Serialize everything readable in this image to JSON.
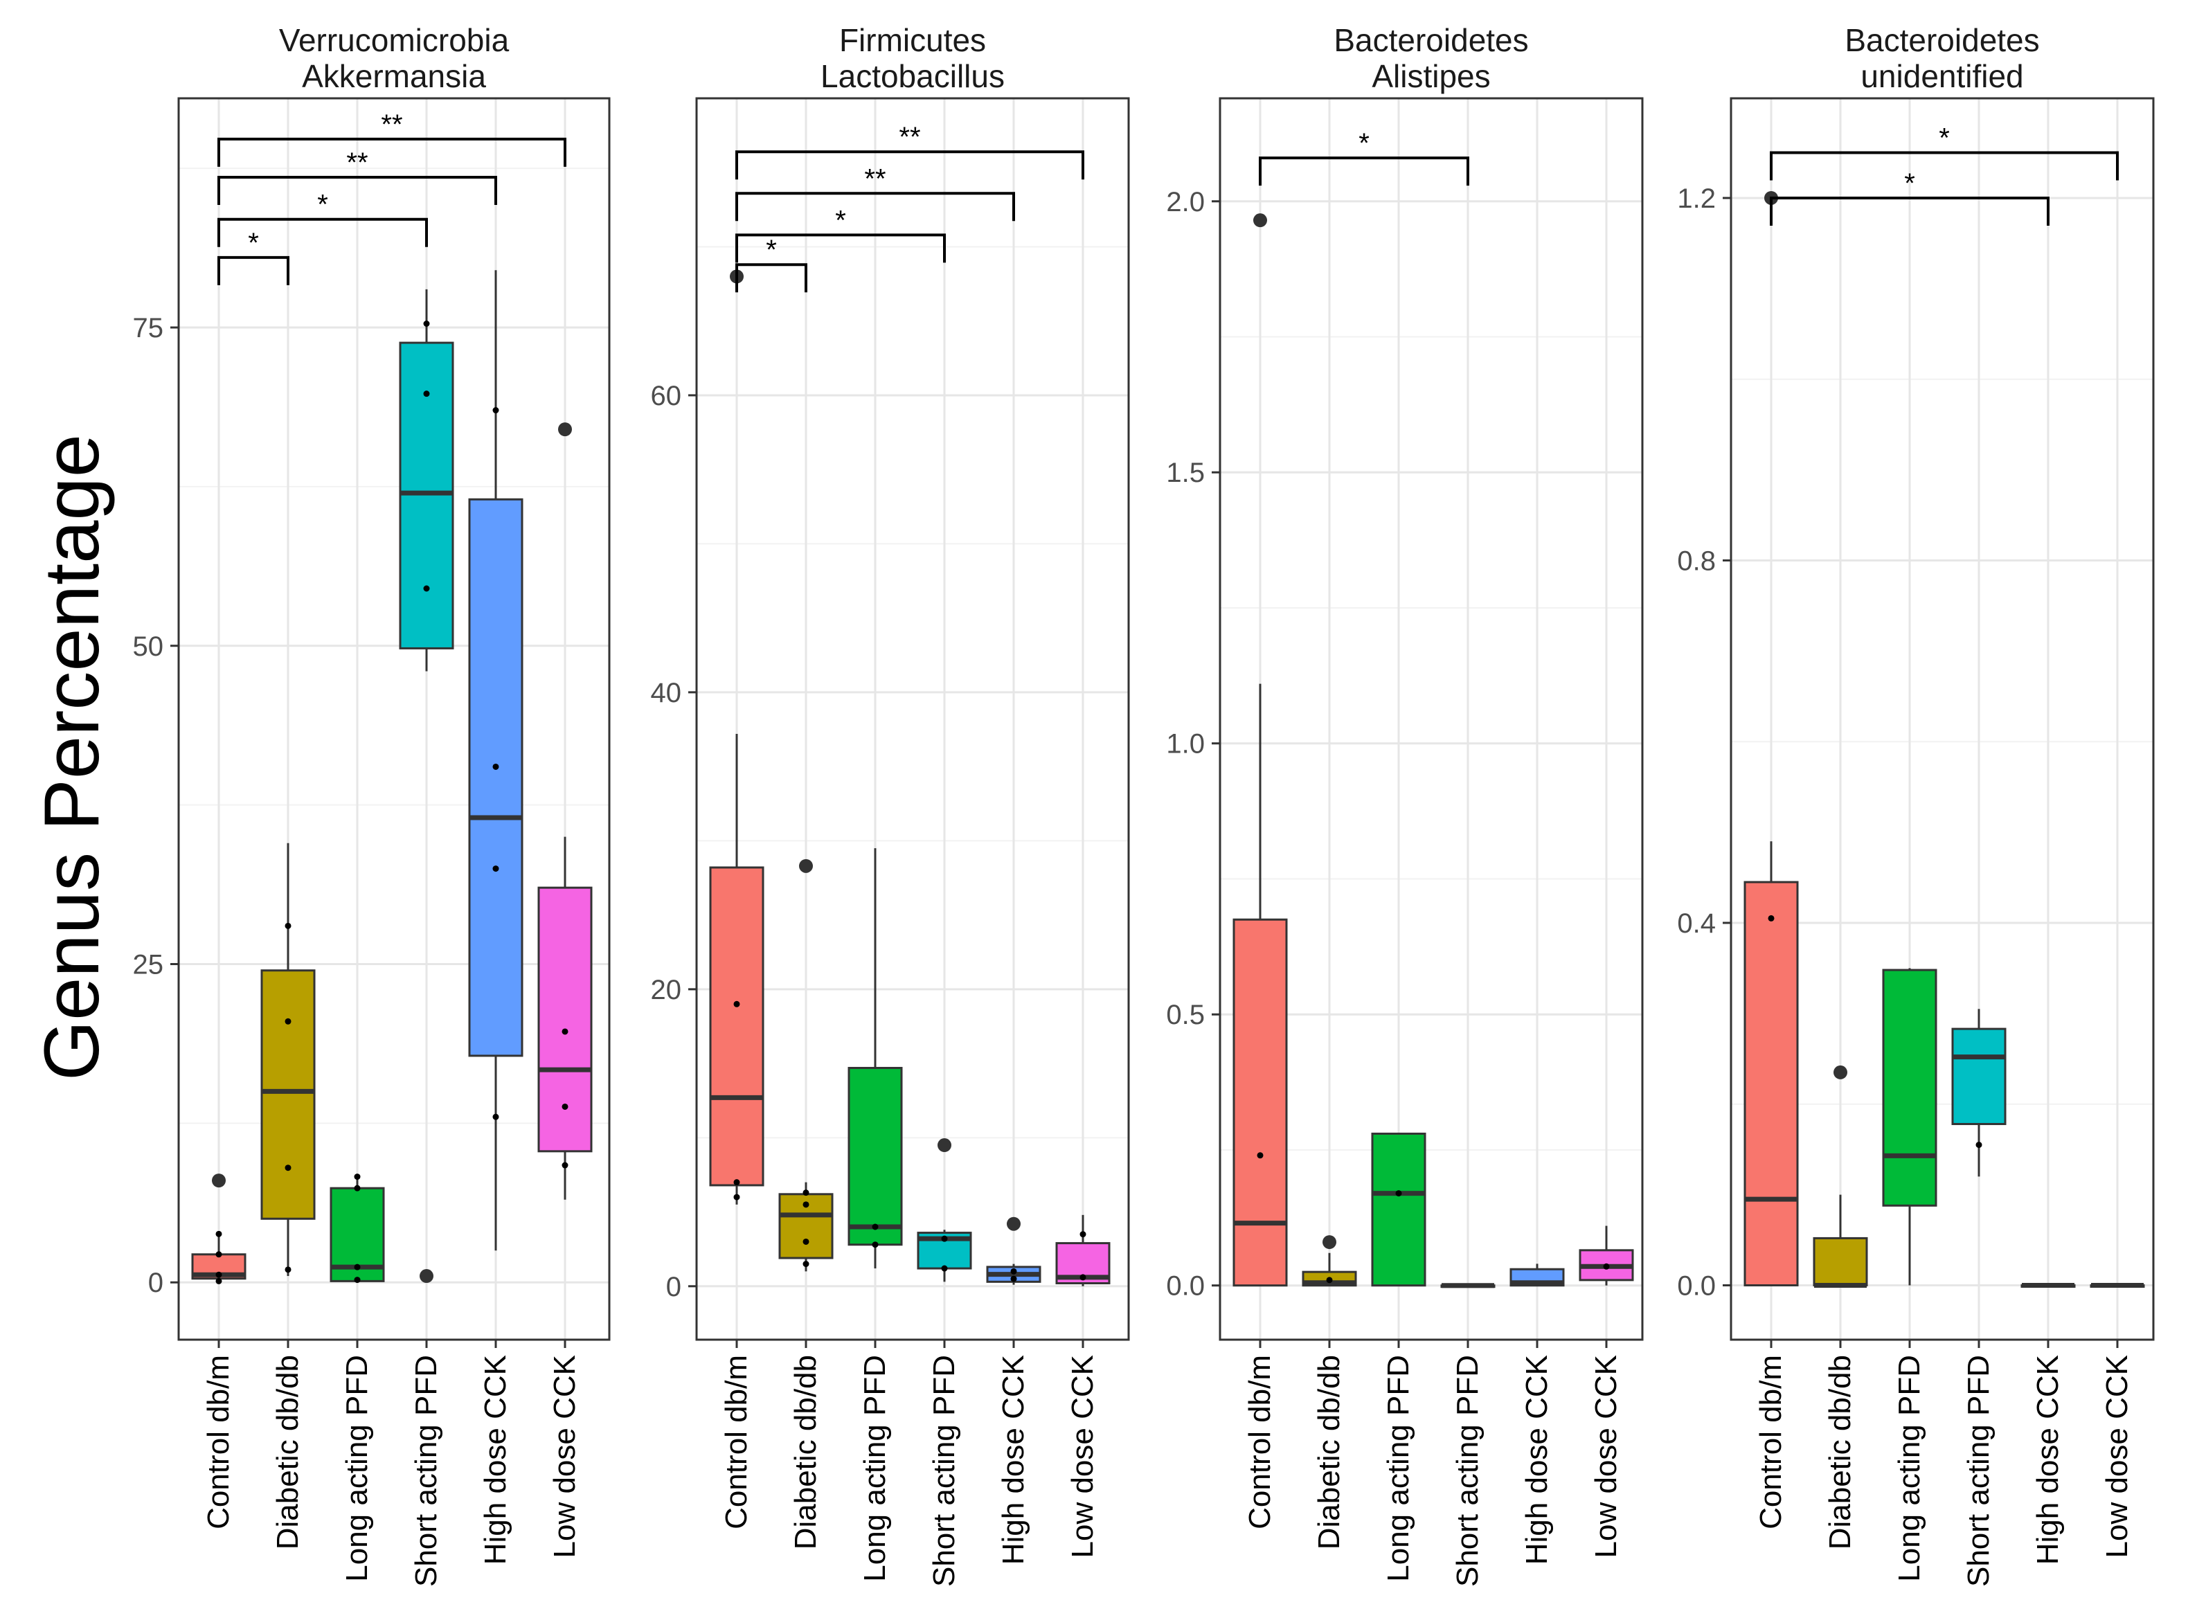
{
  "ylabel": "Genus Percentage",
  "categories": [
    "Control db/m",
    "Diabetic db/db",
    "Long acting PFD",
    "Short acting PFD",
    "High dose CCK",
    "Low dose CCK"
  ],
  "colors": [
    "#F8766D",
    "#B79F00",
    "#00BA38",
    "#00BFC4",
    "#619CFF",
    "#F564E3"
  ],
  "chart_data": [
    {
      "type": "boxplot",
      "title": "Verrucomicrobia\nAkkermansia",
      "categories": [
        "Control db/m",
        "Diabetic db/db",
        "Long acting PFD",
        "Short acting PFD",
        "High dose CCK",
        "Low dose CCK"
      ],
      "ylim": [
        -4.5,
        93
      ],
      "yticks": [
        0,
        25,
        50,
        75
      ],
      "grid": true,
      "boxes": [
        {
          "q1": 0.3,
          "median": 0.6,
          "q3": 2.2,
          "whisker_low": 0,
          "whisker_high": 3.8,
          "outliers": [
            8
          ],
          "points": [
            0.1,
            0.6,
            2.2,
            3.8
          ]
        },
        {
          "q1": 5,
          "median": 15,
          "q3": 24.5,
          "whisker_low": 0.5,
          "whisker_high": 34.5,
          "outliers": [],
          "points": [
            1,
            9,
            20.5,
            28
          ]
        },
        {
          "q1": 0.1,
          "median": 1.2,
          "q3": 7.4,
          "whisker_low": 0,
          "whisker_high": 8.3,
          "outliers": [],
          "points": [
            0.2,
            1.2,
            7.4,
            8.3
          ]
        },
        {
          "q1": 49.8,
          "median": 62,
          "q3": 73.8,
          "whisker_low": 48,
          "whisker_high": 78,
          "outliers": [
            0.5
          ],
          "points": [
            54.5,
            69.8,
            75.3
          ]
        },
        {
          "q1": 17.8,
          "median": 36.5,
          "q3": 61.5,
          "whisker_low": 2.5,
          "whisker_high": 79.5,
          "outliers": [],
          "points": [
            13,
            32.5,
            40.5,
            68.5
          ]
        },
        {
          "q1": 10.3,
          "median": 16.7,
          "q3": 31,
          "whisker_low": 6.5,
          "whisker_high": 35,
          "outliers": [
            67
          ],
          "points": [
            9.2,
            13.8,
            19.7
          ]
        }
      ],
      "significance": [
        {
          "from": 0,
          "to": 1,
          "label": "*",
          "y": 80.5
        },
        {
          "from": 0,
          "to": 3,
          "label": "*",
          "y": 83.5
        },
        {
          "from": 0,
          "to": 4,
          "label": "**",
          "y": 86.8
        },
        {
          "from": 0,
          "to": 5,
          "label": "**",
          "y": 89.8
        }
      ]
    },
    {
      "type": "boxplot",
      "title": "Firmicutes\nLactobacillus",
      "categories": [
        "Control db/m",
        "Diabetic db/db",
        "Long acting PFD",
        "Short acting PFD",
        "High dose CCK",
        "Low dose CCK"
      ],
      "ylim": [
        -3.6,
        80
      ],
      "yticks": [
        0,
        20,
        40,
        60
      ],
      "grid": true,
      "boxes": [
        {
          "q1": 6.8,
          "median": 12.7,
          "q3": 28.2,
          "whisker_low": 5.5,
          "whisker_high": 37.2,
          "outliers": [
            68
          ],
          "points": [
            6,
            7,
            19
          ]
        },
        {
          "q1": 1.9,
          "median": 4.8,
          "q3": 6.2,
          "whisker_low": 1,
          "whisker_high": 7,
          "outliers": [
            28.3
          ],
          "points": [
            1.5,
            3,
            5.5,
            6.3
          ]
        },
        {
          "q1": 2.8,
          "median": 4,
          "q3": 14.7,
          "whisker_low": 1.2,
          "whisker_high": 29.5,
          "outliers": [],
          "points": [
            2.8,
            4
          ]
        },
        {
          "q1": 1.2,
          "median": 3.2,
          "q3": 3.6,
          "whisker_low": 0.3,
          "whisker_high": 3.8,
          "outliers": [
            9.5
          ],
          "points": [
            1.2,
            3.2
          ]
        },
        {
          "q1": 0.3,
          "median": 0.8,
          "q3": 1.3,
          "whisker_low": 0.1,
          "whisker_high": 1.5,
          "outliers": [
            4.2
          ],
          "points": [
            0.5,
            1
          ]
        },
        {
          "q1": 0.2,
          "median": 0.6,
          "q3": 2.9,
          "whisker_low": 0,
          "whisker_high": 4.8,
          "outliers": [],
          "points": [
            0.6,
            3.5
          ]
        }
      ],
      "significance": [
        {
          "from": 0,
          "to": 1,
          "label": "*",
          "y": 68.8
        },
        {
          "from": 0,
          "to": 3,
          "label": "*",
          "y": 70.8
        },
        {
          "from": 0,
          "to": 4,
          "label": "**",
          "y": 73.6
        },
        {
          "from": 0,
          "to": 5,
          "label": "**",
          "y": 76.4
        }
      ]
    },
    {
      "type": "boxplot",
      "title": "Bacteroidetes\nAlistipes",
      "categories": [
        "Control db/m",
        "Diabetic db/db",
        "Long acting PFD",
        "Short acting PFD",
        "High dose CCK",
        "Low dose CCK"
      ],
      "ylim": [
        -0.1,
        2.19
      ],
      "yticks": [
        0.0,
        0.5,
        1.0,
        1.5,
        2.0
      ],
      "tick_labels": [
        "0.0",
        "0.5",
        "1.0",
        "1.5",
        "2.0"
      ],
      "grid": true,
      "boxes": [
        {
          "q1": 0,
          "median": 0.115,
          "q3": 0.675,
          "whisker_low": 0,
          "whisker_high": 1.11,
          "outliers": [
            1.965
          ],
          "points": [
            0.24
          ]
        },
        {
          "q1": 0,
          "median": 0.005,
          "q3": 0.025,
          "whisker_low": 0,
          "whisker_high": 0.06,
          "outliers": [
            0.08
          ],
          "points": [
            0.01
          ]
        },
        {
          "q1": 0,
          "median": 0.17,
          "q3": 0.28,
          "whisker_low": 0,
          "whisker_high": 0.28,
          "outliers": [],
          "points": [
            0.17
          ]
        },
        {
          "q1": 0,
          "median": 0,
          "q3": 0,
          "whisker_low": 0,
          "whisker_high": 0,
          "outliers": [],
          "points": []
        },
        {
          "q1": 0,
          "median": 0.005,
          "q3": 0.03,
          "whisker_low": 0,
          "whisker_high": 0.04,
          "outliers": [],
          "points": []
        },
        {
          "q1": 0.01,
          "median": 0.035,
          "q3": 0.065,
          "whisker_low": 0,
          "whisker_high": 0.11,
          "outliers": [],
          "points": [
            0.035
          ]
        }
      ],
      "significance": [
        {
          "from": 0,
          "to": 3,
          "label": "*",
          "y": 2.08
        }
      ]
    },
    {
      "type": "boxplot",
      "title": "Bacteroidetes\nunidentified",
      "categories": [
        "Control db/m",
        "Diabetic db/db",
        "Long acting PFD",
        "Short acting PFD",
        "High dose CCK",
        "Low dose CCK"
      ],
      "ylim": [
        -0.06,
        1.31
      ],
      "yticks": [
        0.0,
        0.4,
        0.8,
        1.2
      ],
      "tick_labels": [
        "0.0",
        "0.4",
        "0.8",
        "1.2"
      ],
      "grid": true,
      "boxes": [
        {
          "q1": 0,
          "median": 0.095,
          "q3": 0.445,
          "whisker_low": 0,
          "whisker_high": 0.49,
          "outliers": [
            1.2
          ],
          "points": [
            0.405
          ]
        },
        {
          "q1": 0,
          "median": 0,
          "q3": 0.052,
          "whisker_low": 0,
          "whisker_high": 0.1,
          "outliers": [
            0.235
          ],
          "points": []
        },
        {
          "q1": 0.088,
          "median": 0.143,
          "q3": 0.348,
          "whisker_low": 0,
          "whisker_high": 0.35,
          "outliers": [],
          "points": []
        },
        {
          "q1": 0.178,
          "median": 0.252,
          "q3": 0.283,
          "whisker_low": 0.12,
          "whisker_high": 0.305,
          "outliers": [],
          "points": [
            0.155
          ]
        },
        {
          "q1": 0,
          "median": 0,
          "q3": 0,
          "whisker_low": 0,
          "whisker_high": 0,
          "outliers": [],
          "points": []
        },
        {
          "q1": 0,
          "median": 0,
          "q3": 0,
          "whisker_low": 0,
          "whisker_high": 0,
          "outliers": [],
          "points": []
        }
      ],
      "significance": [
        {
          "from": 0,
          "to": 4,
          "label": "*",
          "y": 1.2
        },
        {
          "from": 0,
          "to": 5,
          "label": "*",
          "y": 1.25
        }
      ]
    }
  ]
}
